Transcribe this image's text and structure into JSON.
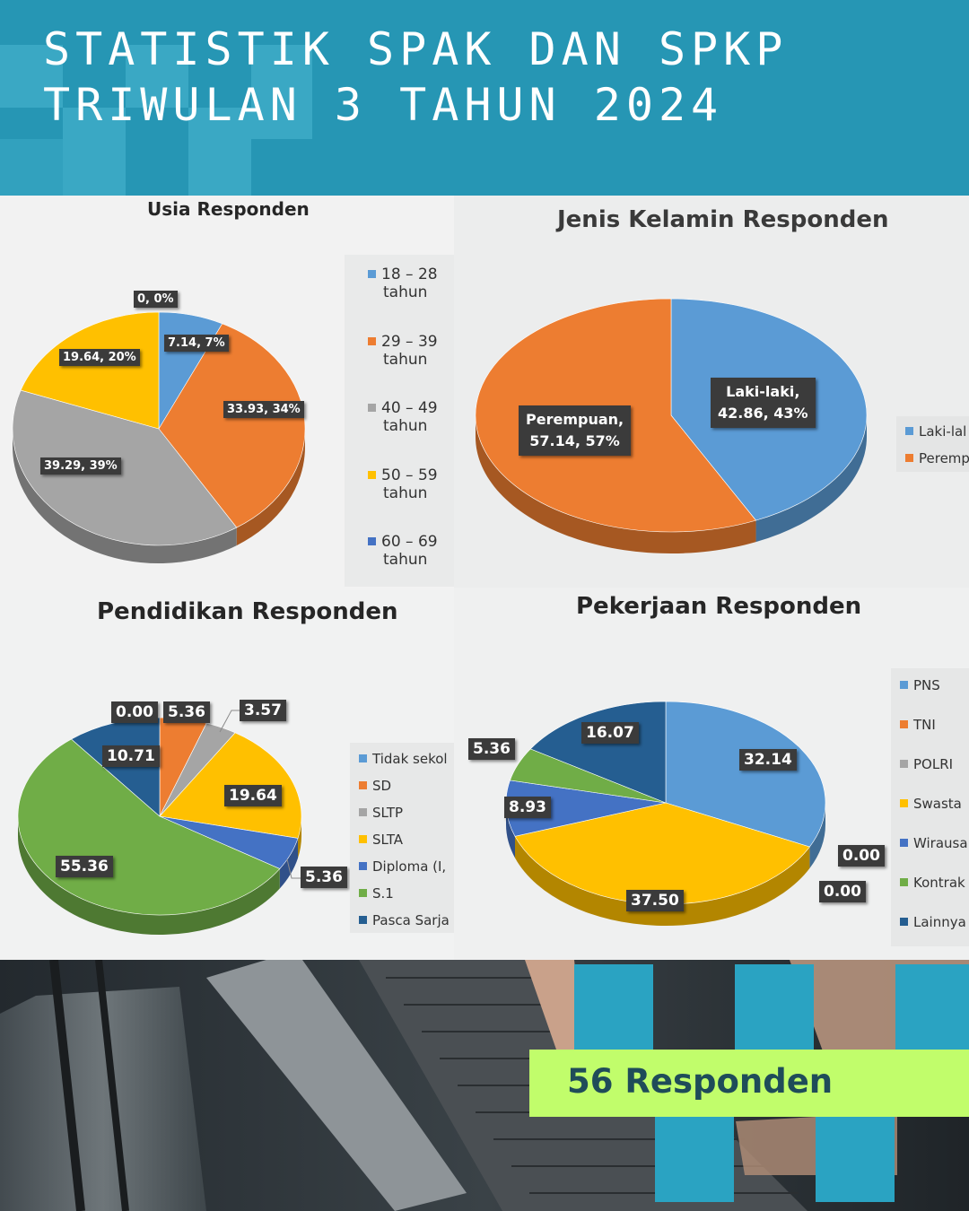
{
  "header": {
    "line1": "STATISTIK SPAK DAN SPKP",
    "line2": "TRIWULAN 3 TAHUN 2024",
    "colors": {
      "background": "#2696b4",
      "squares": "#3aa8c4",
      "text": "#ffffff"
    }
  },
  "chart_data": [
    {
      "type": "pie",
      "title": "Usia Responden",
      "categories": [
        "18 – 28 tahun",
        "29 – 39 tahun",
        "40 – 49 tahun",
        "50 – 59 tahun",
        "60 – 69 tahun"
      ],
      "legend": [
        {
          "l1": "18 – 28",
          "l2": "tahun"
        },
        {
          "l1": "29 – 39",
          "l2": "tahun"
        },
        {
          "l1": "40 – 49",
          "l2": "tahun"
        },
        {
          "l1": "50 – 59",
          "l2": "tahun"
        },
        {
          "l1": "60 – 69",
          "l2": "tahun"
        }
      ],
      "values": [
        7.14,
        33.93,
        39.29,
        19.64,
        0
      ],
      "data_labels": [
        "7.14, 7%",
        "33.93, 34%",
        "39.29, 39%",
        "19.64, 20%",
        "0, 0%"
      ],
      "colors": [
        "#5b9bd5",
        "#ed7d31",
        "#a5a5a5",
        "#ffc000",
        "#4472c4"
      ],
      "legend_position": "right"
    },
    {
      "type": "pie",
      "title": "Jenis Kelamin Responden",
      "categories": [
        "Laki-laki",
        "Perempuan"
      ],
      "legend": [
        "Laki-lal",
        "Peremp"
      ],
      "values": [
        42.86,
        57.14
      ],
      "data_labels": [
        {
          "l1": "Laki-laki,",
          "l2": "42.86, 43%"
        },
        {
          "l1": "Perempuan,",
          "l2": "57.14, 57%"
        }
      ],
      "colors": [
        "#5b9bd5",
        "#ed7d31"
      ],
      "legend_position": "right"
    },
    {
      "type": "pie",
      "title": "Pendidikan Responden",
      "categories": [
        "Tidak sekolah",
        "SD",
        "SLTP",
        "SLTA",
        "Diploma",
        "S.1",
        "Pasca Sarjana"
      ],
      "legend": [
        "Tidak sekol",
        "SD",
        "SLTP",
        "SLTA",
        "Diploma (I,",
        "S.1",
        "Pasca Sarja"
      ],
      "values": [
        0,
        5.36,
        3.57,
        19.64,
        5.36,
        55.36,
        10.71
      ],
      "data_labels": [
        "0.00",
        "5.36",
        "3.57",
        "19.64",
        "5.36",
        "55.36",
        "10.71"
      ],
      "colors": [
        "#5b9bd5",
        "#ed7d31",
        "#a5a5a5",
        "#ffc000",
        "#4472c4",
        "#70ad47",
        "#255e91"
      ],
      "legend_position": "right"
    },
    {
      "type": "pie",
      "title": "Pekerjaan Responden",
      "categories": [
        "PNS",
        "TNI",
        "POLRI",
        "Swasta",
        "Wiraswasta",
        "Kontrak",
        "Lainnya"
      ],
      "legend": [
        "PNS",
        "TNI",
        "POLRI",
        "Swasta",
        "Wirausa",
        "Kontrak",
        "Lainnya"
      ],
      "values": [
        32.14,
        0,
        0,
        37.5,
        8.93,
        5.36,
        16.07
      ],
      "data_labels": [
        "32.14",
        "0.00",
        "0.00",
        "37.50",
        "8.93",
        "5.36",
        "16.07"
      ],
      "colors": [
        "#5b9bd5",
        "#ed7d31",
        "#a5a5a5",
        "#ffc000",
        "#4472c4",
        "#70ad47",
        "#255e91"
      ],
      "legend_position": "right"
    }
  ],
  "banner": {
    "text": "56 Responden",
    "colors": {
      "background": "#c1fd6b",
      "text": "#1f4c59"
    }
  }
}
